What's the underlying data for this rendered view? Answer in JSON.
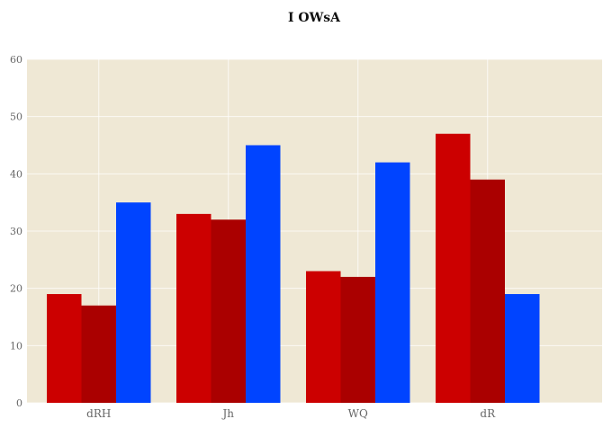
{
  "chart_data": {
    "type": "bar",
    "title": "I OWsA",
    "xlabel": "",
    "ylabel": "",
    "categories": [
      "dRH",
      "Jh",
      "WQ",
      "dR"
    ],
    "series": [
      {
        "values": [
          19,
          33,
          23,
          47
        ],
        "color": "#cc0000"
      },
      {
        "values": [
          17,
          32,
          22,
          39
        ],
        "color": "#aa0000"
      },
      {
        "values": [
          35,
          45,
          42,
          19
        ],
        "color": "#0044ff"
      }
    ],
    "ylim": [
      0,
      60
    ],
    "yticks": [
      0,
      10,
      20,
      30,
      40,
      50,
      60
    ],
    "grid": true,
    "background": "#efe8d5",
    "legend": "none"
  }
}
